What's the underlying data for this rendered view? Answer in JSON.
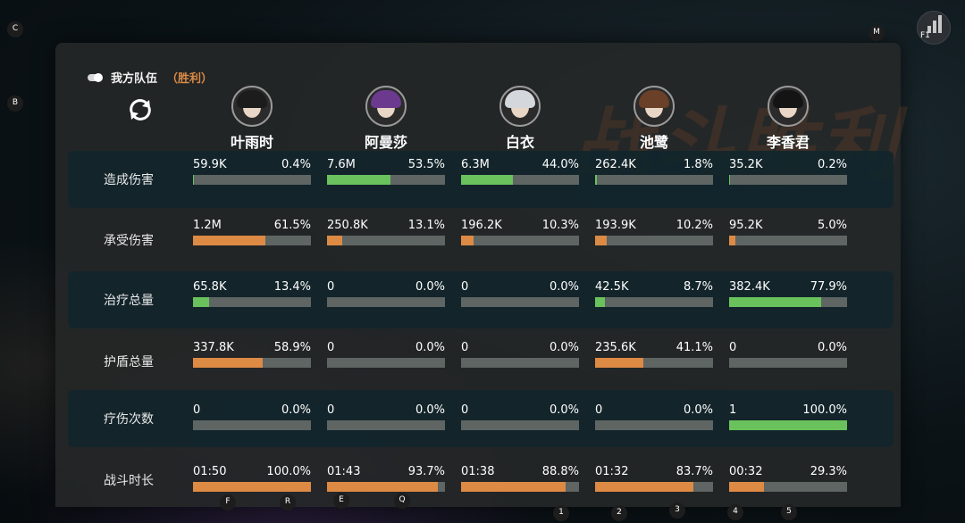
{
  "team": {
    "title": "我方队伍",
    "result": "（胜利）"
  },
  "watermark": "战斗胜利",
  "characters": [
    {
      "name": "叶雨时"
    },
    {
      "name": "阿曼莎"
    },
    {
      "name": "白衣"
    },
    {
      "name": "池鹭"
    },
    {
      "name": "李香君"
    }
  ],
  "stats": [
    {
      "label": "造成伤害",
      "color": "green",
      "cells": [
        {
          "value": "59.9K",
          "percent": "0.4%",
          "fill": 0.4
        },
        {
          "value": "7.6M",
          "percent": "53.5%",
          "fill": 53.5
        },
        {
          "value": "6.3M",
          "percent": "44.0%",
          "fill": 44.0
        },
        {
          "value": "262.4K",
          "percent": "1.8%",
          "fill": 1.8
        },
        {
          "value": "35.2K",
          "percent": "0.2%",
          "fill": 0.2
        }
      ]
    },
    {
      "label": "承受伤害",
      "color": "orange",
      "cells": [
        {
          "value": "1.2M",
          "percent": "61.5%",
          "fill": 61.5
        },
        {
          "value": "250.8K",
          "percent": "13.1%",
          "fill": 13.1
        },
        {
          "value": "196.2K",
          "percent": "10.3%",
          "fill": 10.3
        },
        {
          "value": "193.9K",
          "percent": "10.2%",
          "fill": 10.2
        },
        {
          "value": "95.2K",
          "percent": "5.0%",
          "fill": 5.0
        }
      ]
    },
    {
      "label": "治疗总量",
      "color": "green",
      "cells": [
        {
          "value": "65.8K",
          "percent": "13.4%",
          "fill": 13.4
        },
        {
          "value": "0",
          "percent": "0.0%",
          "fill": 0
        },
        {
          "value": "0",
          "percent": "0.0%",
          "fill": 0
        },
        {
          "value": "42.5K",
          "percent": "8.7%",
          "fill": 8.7
        },
        {
          "value": "382.4K",
          "percent": "77.9%",
          "fill": 77.9
        }
      ]
    },
    {
      "label": "护盾总量",
      "color": "orange",
      "cells": [
        {
          "value": "337.8K",
          "percent": "58.9%",
          "fill": 58.9
        },
        {
          "value": "0",
          "percent": "0.0%",
          "fill": 0
        },
        {
          "value": "0",
          "percent": "0.0%",
          "fill": 0
        },
        {
          "value": "235.6K",
          "percent": "41.1%",
          "fill": 41.1
        },
        {
          "value": "0",
          "percent": "0.0%",
          "fill": 0
        }
      ]
    },
    {
      "label": "疗伤次数",
      "color": "green",
      "cells": [
        {
          "value": "0",
          "percent": "0.0%",
          "fill": 0
        },
        {
          "value": "0",
          "percent": "0.0%",
          "fill": 0
        },
        {
          "value": "0",
          "percent": "0.0%",
          "fill": 0
        },
        {
          "value": "0",
          "percent": "0.0%",
          "fill": 0
        },
        {
          "value": "1",
          "percent": "100.0%",
          "fill": 100
        }
      ]
    },
    {
      "label": "战斗时长",
      "color": "orange",
      "cells": [
        {
          "value": "01:50",
          "percent": "100.0%",
          "fill": 100
        },
        {
          "value": "01:43",
          "percent": "93.7%",
          "fill": 93.7
        },
        {
          "value": "01:38",
          "percent": "88.8%",
          "fill": 88.8
        },
        {
          "value": "01:32",
          "percent": "83.7%",
          "fill": 83.7
        },
        {
          "value": "00:32",
          "percent": "29.3%",
          "fill": 29.3
        }
      ]
    }
  ],
  "hotkeys": {
    "c": "C",
    "b": "B",
    "m": "M",
    "f1": "F1",
    "f": "F",
    "r": "R",
    "e": "E",
    "q": "Q",
    "k1": "1",
    "k2": "2",
    "k3": "3",
    "k4": "4",
    "k5": "5"
  },
  "icons": {
    "team_toggle": "toggle-icon",
    "refresh": "refresh-icon",
    "stats_menu": "bar-chart-icon"
  }
}
